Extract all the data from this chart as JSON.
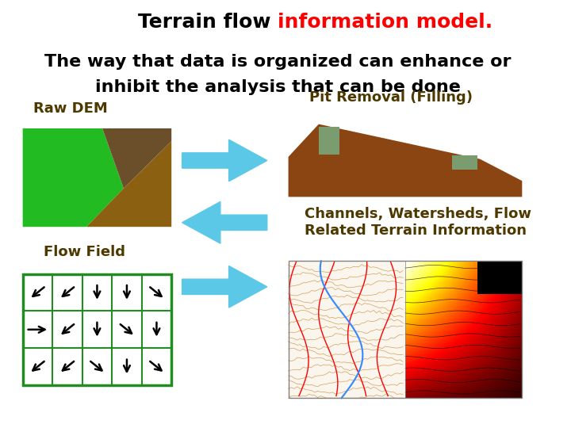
{
  "title_black": "Terrain flow ",
  "title_red": "information model.",
  "subtitle_line1": "The way that data is organized can enhance or",
  "subtitle_line2": "inhibit the analysis that can be done",
  "label_raw_dem": "Raw DEM",
  "label_flow_field": "Flow Field",
  "label_pit_removal": "Pit Removal (Filling)",
  "label_channels": "Channels, Watersheds, Flow\nRelated Terrain Information",
  "bg_color": "#ffffff",
  "title_fontsize": 18,
  "subtitle_fontsize": 16,
  "label_fontsize": 13,
  "label_color": "#4d3900",
  "arrow_color": "#5bc8e8"
}
